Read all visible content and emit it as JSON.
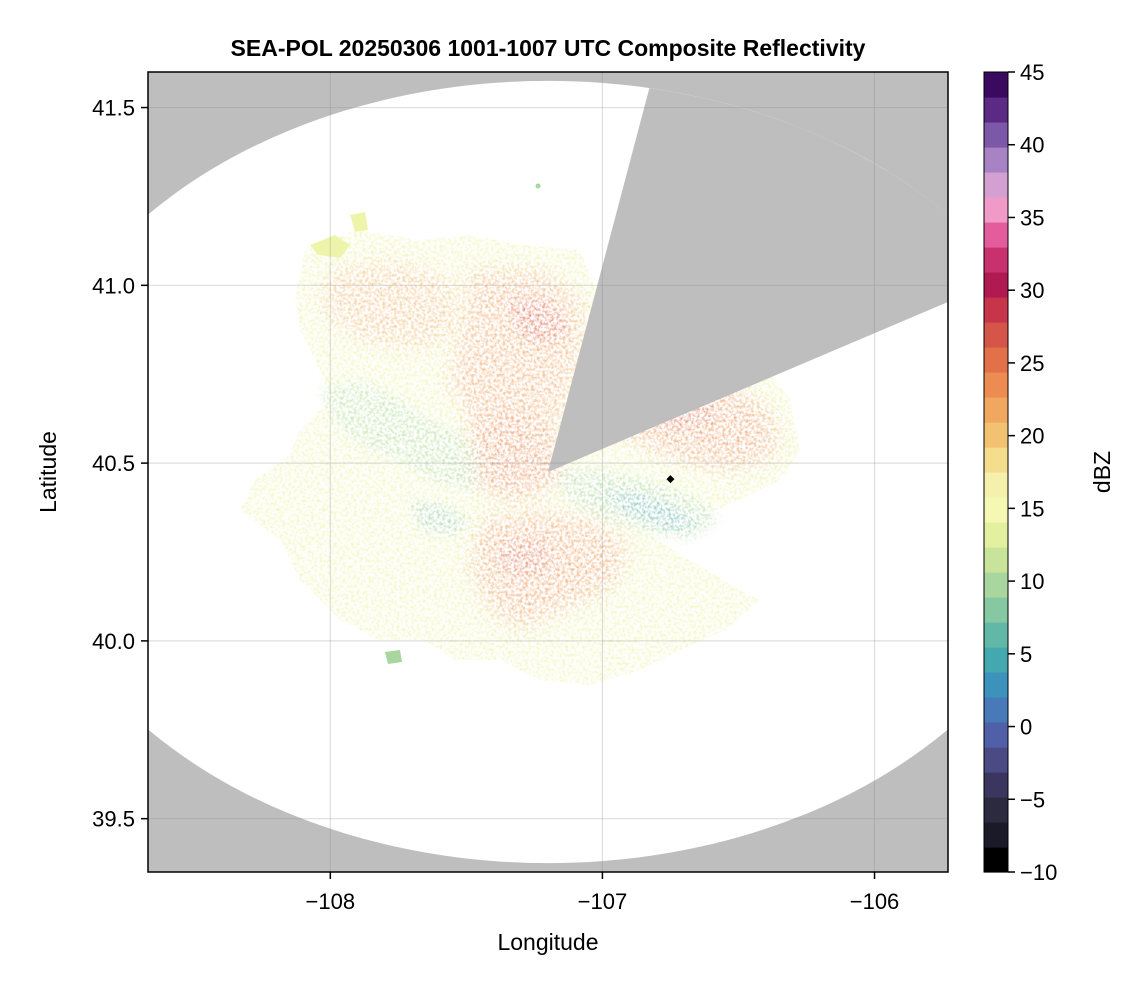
{
  "chart_data": {
    "type": "heatmap",
    "title": "SEA-POL 20250306 1001-1007 UTC Composite Reflectivity",
    "xlabel": "Longitude",
    "ylabel": "Latitude",
    "xlim": [
      -108.67,
      -105.73
    ],
    "ylim": [
      39.35,
      41.6
    ],
    "xticks": [
      -108,
      -107,
      -106
    ],
    "xtick_labels": [
      "−108",
      "−107",
      "−106"
    ],
    "yticks": [
      39.5,
      40.0,
      40.5,
      41.0,
      41.5
    ],
    "ytick_labels": [
      "39.5",
      "40.0",
      "40.5",
      "41.0",
      "41.5"
    ],
    "grid": true,
    "background_color": "#bebebe",
    "radar_center": {
      "lon": -107.2,
      "lat": 40.475
    },
    "range_radius_lon": 2.85,
    "range_radius_lat": 1.1,
    "blocked_sectors": [
      {
        "azimuth_from_deg": 11,
        "azimuth_to_deg": 27
      },
      {
        "azimuth_from_deg": 27,
        "azimuth_to_deg": 60
      }
    ],
    "marker": {
      "lon": -106.75,
      "lat": 40.455,
      "shape": "diamond",
      "color": "#000000"
    },
    "colorbar": {
      "label": "dBZ",
      "range": [
        -10,
        45
      ],
      "ticks": [
        -10,
        -5,
        0,
        5,
        10,
        15,
        20,
        25,
        30,
        35,
        40,
        45
      ],
      "tick_labels": [
        "−10",
        "−5",
        "0",
        "5",
        "10",
        "15",
        "20",
        "25",
        "30",
        "35",
        "40",
        "45"
      ],
      "colors": [
        "#000000",
        "#1a1a28",
        "#2c2a3f",
        "#3b3660",
        "#4a4a85",
        "#5060a8",
        "#4879b8",
        "#3d92bb",
        "#44a8b0",
        "#62b8a6",
        "#86c8a2",
        "#a9d69e",
        "#c8e39a",
        "#e2f0a0",
        "#f5f8b2",
        "#f6f0ad",
        "#f5dd8e",
        "#f2c272",
        "#f0a860",
        "#ec8c52",
        "#e27048",
        "#d55548",
        "#c7354a",
        "#b01a50",
        "#c8306e",
        "#e35c9c",
        "#f09ac7",
        "#d4a0d2",
        "#a883c4",
        "#7e58a8",
        "#5a2a84",
        "#3a0a60"
      ]
    },
    "echo_regions": [
      {
        "description": "main reflectivity area",
        "dbz_range": [
          10,
          30
        ]
      }
    ]
  }
}
